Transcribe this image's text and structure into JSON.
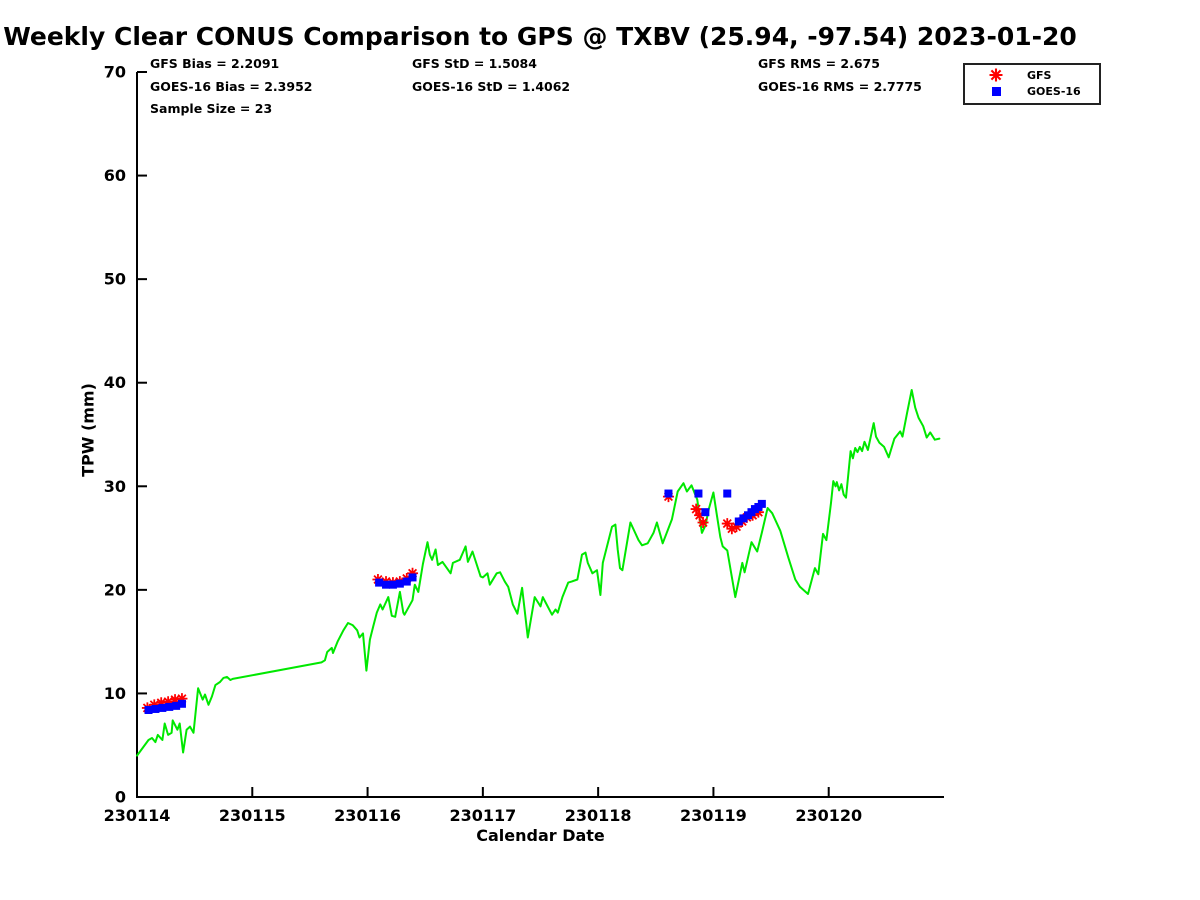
{
  "title": "Weekly Clear CONUS Comparison to GPS @ TXBV (25.94, -97.54) 2023-01-20",
  "stats": {
    "gfs_bias": "GFS Bias = 2.2091",
    "goes16_bias": "GOES-16 Bias = 2.3952",
    "sample_size": "Sample Size = 23",
    "gfs_std": "GFS StD = 1.5084",
    "goes16_std": "GOES-16 StD = 1.4062",
    "gfs_rms": "GFS RMS = 2.675",
    "goes16_rms": "GOES-16 RMS = 2.7775"
  },
  "legend": {
    "items": [
      {
        "label": "GFS",
        "marker": "asterisk",
        "color": "#ff0000"
      },
      {
        "label": "GOES-16",
        "marker": "square",
        "color": "#0000ff"
      }
    ]
  },
  "colors": {
    "gps_line": "#00e800",
    "gfs": "#ff0000",
    "goes16": "#0000ff",
    "axis": "#000000",
    "background": "#ffffff"
  },
  "chart_data": {
    "type": "line",
    "title": "Weekly Clear CONUS Comparison to GPS @ TXBV (25.94, -97.54) 2023-01-20",
    "xlabel": "Calendar Date",
    "ylabel": "TPW (mm)",
    "xlim": [
      230114,
      230121
    ],
    "ylim": [
      0,
      70
    ],
    "xticks": [
      230114,
      230115,
      230116,
      230117,
      230118,
      230119,
      230120
    ],
    "yticks": [
      0,
      10,
      20,
      30,
      40,
      50,
      60,
      70
    ],
    "grid": false,
    "legend_position": "top-right",
    "series": [
      {
        "name": "GPS TPW",
        "type": "line",
        "color": "#00e800",
        "points": [
          [
            230114.0,
            4.0
          ],
          [
            230114.1,
            5.5
          ],
          [
            230114.13,
            5.7
          ],
          [
            230114.16,
            5.3
          ],
          [
            230114.18,
            6.0
          ],
          [
            230114.22,
            5.5
          ],
          [
            230114.24,
            7.1
          ],
          [
            230114.27,
            6.0
          ],
          [
            230114.3,
            6.2
          ],
          [
            230114.31,
            7.4
          ],
          [
            230114.35,
            6.5
          ],
          [
            230114.37,
            7.1
          ],
          [
            230114.4,
            4.3
          ],
          [
            230114.43,
            6.5
          ],
          [
            230114.46,
            6.8
          ],
          [
            230114.49,
            6.2
          ],
          [
            230114.53,
            10.5
          ],
          [
            230114.57,
            9.4
          ],
          [
            230114.59,
            9.9
          ],
          [
            230114.62,
            8.9
          ],
          [
            230114.65,
            9.7
          ],
          [
            230114.68,
            10.8
          ],
          [
            230114.72,
            11.1
          ],
          [
            230114.75,
            11.5
          ],
          [
            230114.78,
            11.6
          ],
          [
            230114.81,
            11.3
          ],
          [
            230114.83,
            11.4
          ],
          [
            230115.6,
            13.0
          ],
          [
            230115.63,
            13.2
          ],
          [
            230115.65,
            14.0
          ],
          [
            230115.69,
            14.4
          ],
          [
            230115.7,
            13.9
          ],
          [
            230115.74,
            15.0
          ],
          [
            230115.79,
            16.1
          ],
          [
            230115.83,
            16.8
          ],
          [
            230115.87,
            16.6
          ],
          [
            230115.91,
            16.1
          ],
          [
            230115.93,
            15.4
          ],
          [
            230115.96,
            15.8
          ],
          [
            230115.99,
            12.2
          ],
          [
            230116.02,
            15.2
          ],
          [
            230116.05,
            16.5
          ],
          [
            230116.08,
            17.8
          ],
          [
            230116.11,
            18.6
          ],
          [
            230116.13,
            18.1
          ],
          [
            230116.18,
            19.3
          ],
          [
            230116.21,
            17.5
          ],
          [
            230116.24,
            17.4
          ],
          [
            230116.28,
            19.8
          ],
          [
            230116.31,
            17.8
          ],
          [
            230116.32,
            17.6
          ],
          [
            230116.39,
            19.0
          ],
          [
            230116.41,
            20.5
          ],
          [
            230116.44,
            19.8
          ],
          [
            230116.48,
            22.5
          ],
          [
            230116.52,
            24.6
          ],
          [
            230116.54,
            23.4
          ],
          [
            230116.56,
            22.9
          ],
          [
            230116.59,
            23.9
          ],
          [
            230116.61,
            22.4
          ],
          [
            230116.65,
            22.7
          ],
          [
            230116.72,
            21.6
          ],
          [
            230116.74,
            22.6
          ],
          [
            230116.8,
            22.9
          ],
          [
            230116.85,
            24.2
          ],
          [
            230116.87,
            22.7
          ],
          [
            230116.91,
            23.7
          ],
          [
            230116.98,
            21.3
          ],
          [
            230117.0,
            21.2
          ],
          [
            230117.04,
            21.6
          ],
          [
            230117.06,
            20.5
          ],
          [
            230117.12,
            21.6
          ],
          [
            230117.15,
            21.7
          ],
          [
            230117.19,
            20.8
          ],
          [
            230117.22,
            20.3
          ],
          [
            230117.26,
            18.6
          ],
          [
            230117.3,
            17.7
          ],
          [
            230117.34,
            20.2
          ],
          [
            230117.39,
            15.4
          ],
          [
            230117.45,
            19.3
          ],
          [
            230117.5,
            18.4
          ],
          [
            230117.52,
            19.3
          ],
          [
            230117.6,
            17.6
          ],
          [
            230117.63,
            18.1
          ],
          [
            230117.65,
            17.8
          ],
          [
            230117.69,
            19.3
          ],
          [
            230117.74,
            20.7
          ],
          [
            230117.77,
            20.8
          ],
          [
            230117.82,
            21.0
          ],
          [
            230117.86,
            23.4
          ],
          [
            230117.89,
            23.6
          ],
          [
            230117.91,
            22.6
          ],
          [
            230117.95,
            21.6
          ],
          [
            230117.99,
            21.9
          ],
          [
            230118.02,
            19.5
          ],
          [
            230118.04,
            22.6
          ],
          [
            230118.12,
            26.1
          ],
          [
            230118.15,
            26.3
          ],
          [
            230118.17,
            23.9
          ],
          [
            230118.19,
            22.1
          ],
          [
            230118.21,
            21.9
          ],
          [
            230118.28,
            26.5
          ],
          [
            230118.35,
            24.8
          ],
          [
            230118.38,
            24.3
          ],
          [
            230118.43,
            24.5
          ],
          [
            230118.48,
            25.5
          ],
          [
            230118.51,
            26.5
          ],
          [
            230118.56,
            24.5
          ],
          [
            230118.64,
            26.8
          ],
          [
            230118.69,
            29.5
          ],
          [
            230118.74,
            30.3
          ],
          [
            230118.77,
            29.5
          ],
          [
            230118.81,
            30.1
          ],
          [
            230118.86,
            28.7
          ],
          [
            230118.88,
            27.0
          ],
          [
            230118.9,
            25.5
          ],
          [
            230118.93,
            26.2
          ],
          [
            230118.96,
            27.8
          ],
          [
            230119.0,
            29.4
          ],
          [
            230119.03,
            27.2
          ],
          [
            230119.06,
            25.1
          ],
          [
            230119.08,
            24.2
          ],
          [
            230119.12,
            23.8
          ],
          [
            230119.14,
            22.5
          ],
          [
            230119.19,
            19.3
          ],
          [
            230119.25,
            22.6
          ],
          [
            230119.27,
            21.7
          ],
          [
            230119.33,
            24.6
          ],
          [
            230119.38,
            23.7
          ],
          [
            230119.42,
            25.5
          ],
          [
            230119.47,
            27.9
          ],
          [
            230119.51,
            27.4
          ],
          [
            230119.58,
            25.7
          ],
          [
            230119.65,
            23.1
          ],
          [
            230119.71,
            21.0
          ],
          [
            230119.75,
            20.3
          ],
          [
            230119.79,
            19.9
          ],
          [
            230119.82,
            19.6
          ],
          [
            230119.88,
            22.1
          ],
          [
            230119.91,
            21.5
          ],
          [
            230119.95,
            25.4
          ],
          [
            230119.98,
            24.8
          ],
          [
            230120.02,
            28.4
          ],
          [
            230120.04,
            30.5
          ],
          [
            230120.06,
            30.0
          ],
          [
            230120.07,
            30.4
          ],
          [
            230120.09,
            29.6
          ],
          [
            230120.11,
            30.2
          ],
          [
            230120.13,
            29.2
          ],
          [
            230120.15,
            28.9
          ],
          [
            230120.19,
            33.4
          ],
          [
            230120.21,
            32.7
          ],
          [
            230120.23,
            33.7
          ],
          [
            230120.25,
            33.3
          ],
          [
            230120.27,
            33.8
          ],
          [
            230120.29,
            33.4
          ],
          [
            230120.31,
            34.3
          ],
          [
            230120.34,
            33.5
          ],
          [
            230120.39,
            36.1
          ],
          [
            230120.41,
            34.8
          ],
          [
            230120.44,
            34.2
          ],
          [
            230120.48,
            33.8
          ],
          [
            230120.52,
            32.8
          ],
          [
            230120.57,
            34.6
          ],
          [
            230120.62,
            35.3
          ],
          [
            230120.64,
            34.8
          ],
          [
            230120.68,
            37.1
          ],
          [
            230120.72,
            39.3
          ],
          [
            230120.75,
            37.6
          ],
          [
            230120.78,
            36.6
          ],
          [
            230120.82,
            35.8
          ],
          [
            230120.85,
            34.7
          ],
          [
            230120.88,
            35.2
          ],
          [
            230120.92,
            34.5
          ],
          [
            230120.96,
            34.6
          ]
        ]
      },
      {
        "name": "GFS",
        "type": "scatter",
        "marker": "asterisk",
        "color": "#ff0000",
        "points": [
          [
            230114.09,
            8.6
          ],
          [
            230114.15,
            8.9
          ],
          [
            230114.21,
            9.1
          ],
          [
            230114.27,
            9.2
          ],
          [
            230114.33,
            9.4
          ],
          [
            230114.39,
            9.5
          ],
          [
            230116.09,
            21.0
          ],
          [
            230116.16,
            20.8
          ],
          [
            230116.22,
            20.7
          ],
          [
            230116.28,
            20.8
          ],
          [
            230116.34,
            21.1
          ],
          [
            230116.39,
            21.6
          ],
          [
            230118.61,
            29.0
          ],
          [
            230118.85,
            27.8
          ],
          [
            230118.88,
            27.2
          ],
          [
            230118.91,
            26.5
          ],
          [
            230119.12,
            26.4
          ],
          [
            230119.16,
            25.9
          ],
          [
            230119.2,
            26.1
          ],
          [
            230119.25,
            26.6
          ],
          [
            230119.29,
            27.0
          ],
          [
            230119.34,
            27.2
          ],
          [
            230119.39,
            27.5
          ]
        ]
      },
      {
        "name": "GOES-16",
        "type": "scatter",
        "marker": "square",
        "color": "#0000ff",
        "points": [
          [
            230114.1,
            8.4
          ],
          [
            230114.16,
            8.5
          ],
          [
            230114.22,
            8.6
          ],
          [
            230114.28,
            8.7
          ],
          [
            230114.34,
            8.8
          ],
          [
            230114.39,
            9.0
          ],
          [
            230116.1,
            20.7
          ],
          [
            230116.16,
            20.5
          ],
          [
            230116.22,
            20.5
          ],
          [
            230116.28,
            20.6
          ],
          [
            230116.34,
            20.8
          ],
          [
            230116.39,
            21.2
          ],
          [
            230118.61,
            29.3
          ],
          [
            230118.87,
            29.3
          ],
          [
            230118.93,
            27.5
          ],
          [
            230119.12,
            29.3
          ],
          [
            230119.22,
            26.6
          ],
          [
            230119.26,
            26.9
          ],
          [
            230119.3,
            27.2
          ],
          [
            230119.33,
            27.5
          ],
          [
            230119.36,
            27.8
          ],
          [
            230119.39,
            28.0
          ],
          [
            230119.42,
            28.3
          ]
        ]
      }
    ]
  }
}
